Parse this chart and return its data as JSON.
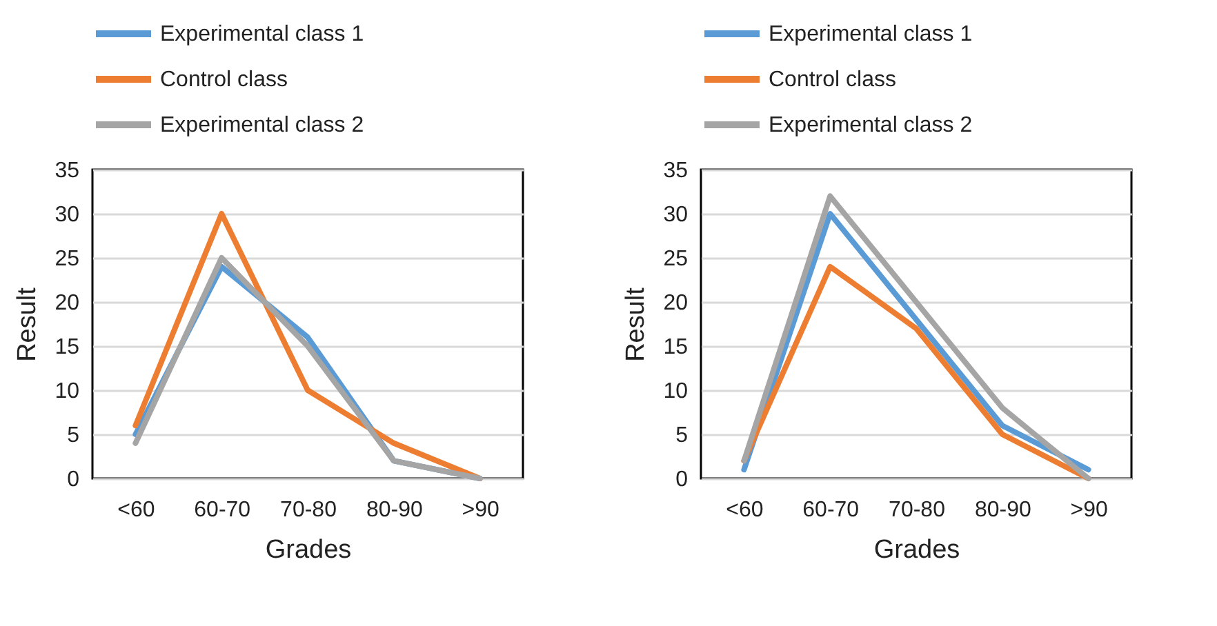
{
  "chart_data": [
    {
      "type": "line",
      "xlabel": "Grades",
      "ylabel": "Result",
      "categories": [
        "<60",
        "60-70",
        "70-80",
        "80-90",
        ">90"
      ],
      "ylim": [
        0,
        35
      ],
      "yticks": [
        0,
        5,
        10,
        15,
        20,
        25,
        30,
        35
      ],
      "grid": "y",
      "legend": "top",
      "series": [
        {
          "name": "Experimental class 1",
          "color": "#5b9bd5",
          "values": [
            5,
            24,
            16,
            2,
            0
          ]
        },
        {
          "name": "Control class",
          "color": "#ed7d31",
          "values": [
            6,
            30,
            10,
            4,
            0
          ]
        },
        {
          "name": "Experimental class 2",
          "color": "#a5a5a5",
          "values": [
            4,
            25,
            15,
            2,
            0
          ]
        }
      ]
    },
    {
      "type": "line",
      "xlabel": "Grades",
      "ylabel": "Result",
      "categories": [
        "<60",
        "60-70",
        "70-80",
        "80-90",
        ">90"
      ],
      "ylim": [
        0,
        35
      ],
      "yticks": [
        0,
        5,
        10,
        15,
        20,
        25,
        30,
        35
      ],
      "grid": "y",
      "legend": "top",
      "series": [
        {
          "name": "Experimental class 1",
          "color": "#5b9bd5",
          "values": [
            1,
            30,
            18,
            6,
            1
          ]
        },
        {
          "name": "Control class",
          "color": "#ed7d31",
          "values": [
            2,
            24,
            17,
            5,
            0
          ]
        },
        {
          "name": "Experimental class 2",
          "color": "#a5a5a5",
          "values": [
            2,
            32,
            20,
            8,
            0
          ]
        }
      ]
    }
  ]
}
